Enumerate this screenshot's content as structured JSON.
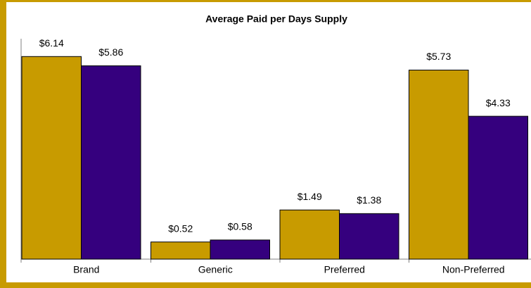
{
  "chart_data": {
    "type": "bar",
    "title": "Average Paid per Days Supply",
    "categories": [
      "Brand",
      "Generic",
      "Preferred",
      "Non-Preferred"
    ],
    "series": [
      {
        "color": "#c89b00",
        "values": [
          6.14,
          0.52,
          1.49,
          5.73
        ],
        "value_labels": [
          "$6.14",
          "$0.52",
          "$1.49",
          "$5.73"
        ]
      },
      {
        "color": "#35007e",
        "values": [
          5.86,
          0.58,
          1.38,
          4.33
        ],
        "value_labels": [
          "$5.86",
          "$0.58",
          "$1.38",
          "$4.33"
        ]
      }
    ],
    "ylim": [
      0,
      7
    ],
    "grid": false
  }
}
